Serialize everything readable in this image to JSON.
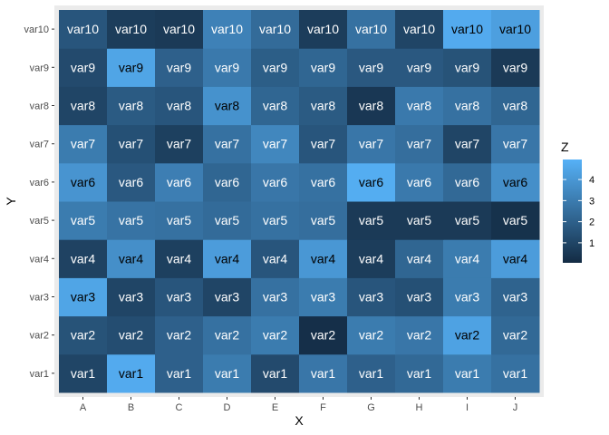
{
  "chart_data": {
    "type": "heatmap",
    "x": [
      "A",
      "B",
      "C",
      "D",
      "E",
      "F",
      "G",
      "H",
      "I",
      "J"
    ],
    "y": [
      "var1",
      "var2",
      "var3",
      "var4",
      "var5",
      "var6",
      "var7",
      "var8",
      "var9",
      "var10"
    ],
    "xlabel": "X",
    "ylabel": "Y",
    "legend": {
      "title": "Z",
      "ticks": [
        1,
        2,
        3,
        4
      ],
      "placement": "right",
      "range": [
        0.05,
        4.95
      ],
      "color_low": "#132B43",
      "color_high": "#56B1F7"
    },
    "panel_background": "#EBEBEB",
    "grid": true,
    "z": [
      [
        1.0,
        4.7,
        2.0,
        3.0,
        1.2,
        2.8,
        2.0,
        2.3,
        3.0,
        2.6
      ],
      [
        1.5,
        1.3,
        2.0,
        2.6,
        3.0,
        0.2,
        3.0,
        2.8,
        4.4,
        2.3
      ],
      [
        4.5,
        1.0,
        1.6,
        1.0,
        2.6,
        3.0,
        1.6,
        1.4,
        3.0,
        2.1
      ],
      [
        0.9,
        3.7,
        0.8,
        4.2,
        1.6,
        4.0,
        0.7,
        2.2,
        3.0,
        4.2
      ],
      [
        3.0,
        2.7,
        2.6,
        2.4,
        2.6,
        2.5,
        0.6,
        0.6,
        0.6,
        0.3
      ],
      [
        3.9,
        1.7,
        3.1,
        2.2,
        2.8,
        2.6,
        4.8,
        2.9,
        2.3,
        3.7
      ],
      [
        3.0,
        1.4,
        0.8,
        2.6,
        3.4,
        1.6,
        2.8,
        2.5,
        1.0,
        2.8
      ],
      [
        1.0,
        1.8,
        1.6,
        3.8,
        2.2,
        1.8,
        0.5,
        2.9,
        2.6,
        2.2
      ],
      [
        1.2,
        4.5,
        2.0,
        2.9,
        1.9,
        2.2,
        1.7,
        1.7,
        1.5,
        0.6
      ],
      [
        1.6,
        0.7,
        0.6,
        3.2,
        2.4,
        0.7,
        2.6,
        1.0,
        4.7,
        4.3
      ]
    ]
  }
}
